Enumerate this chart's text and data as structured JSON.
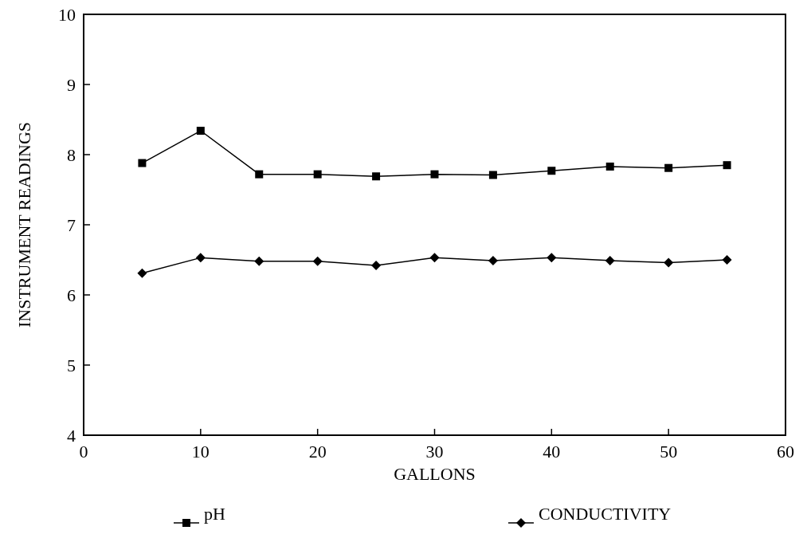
{
  "chart_data": {
    "type": "line",
    "xlabel": "GALLONS",
    "ylabel": "INSTRUMENT READINGS",
    "x": [
      5,
      10,
      15,
      20,
      25,
      30,
      35,
      40,
      45,
      50,
      55
    ],
    "series": [
      {
        "name": "pH",
        "color": "#000000",
        "marker": "square",
        "values": [
          7.88,
          8.34,
          7.72,
          7.72,
          7.69,
          7.72,
          7.71,
          7.77,
          7.83,
          7.81,
          7.85
        ]
      },
      {
        "name": "CONDUCTIVITY",
        "color": "#000000",
        "marker": "diamond",
        "values": [
          6.31,
          6.53,
          6.48,
          6.48,
          6.42,
          6.53,
          6.49,
          6.53,
          6.49,
          6.46,
          6.5
        ]
      }
    ],
    "xlim": [
      0,
      60
    ],
    "xticks": [
      0,
      10,
      20,
      30,
      40,
      50,
      60
    ],
    "ylim": [
      4,
      10
    ],
    "yticks": [
      4,
      5,
      6,
      7,
      8,
      9,
      10
    ],
    "grid": false,
    "legend": "bottom"
  }
}
